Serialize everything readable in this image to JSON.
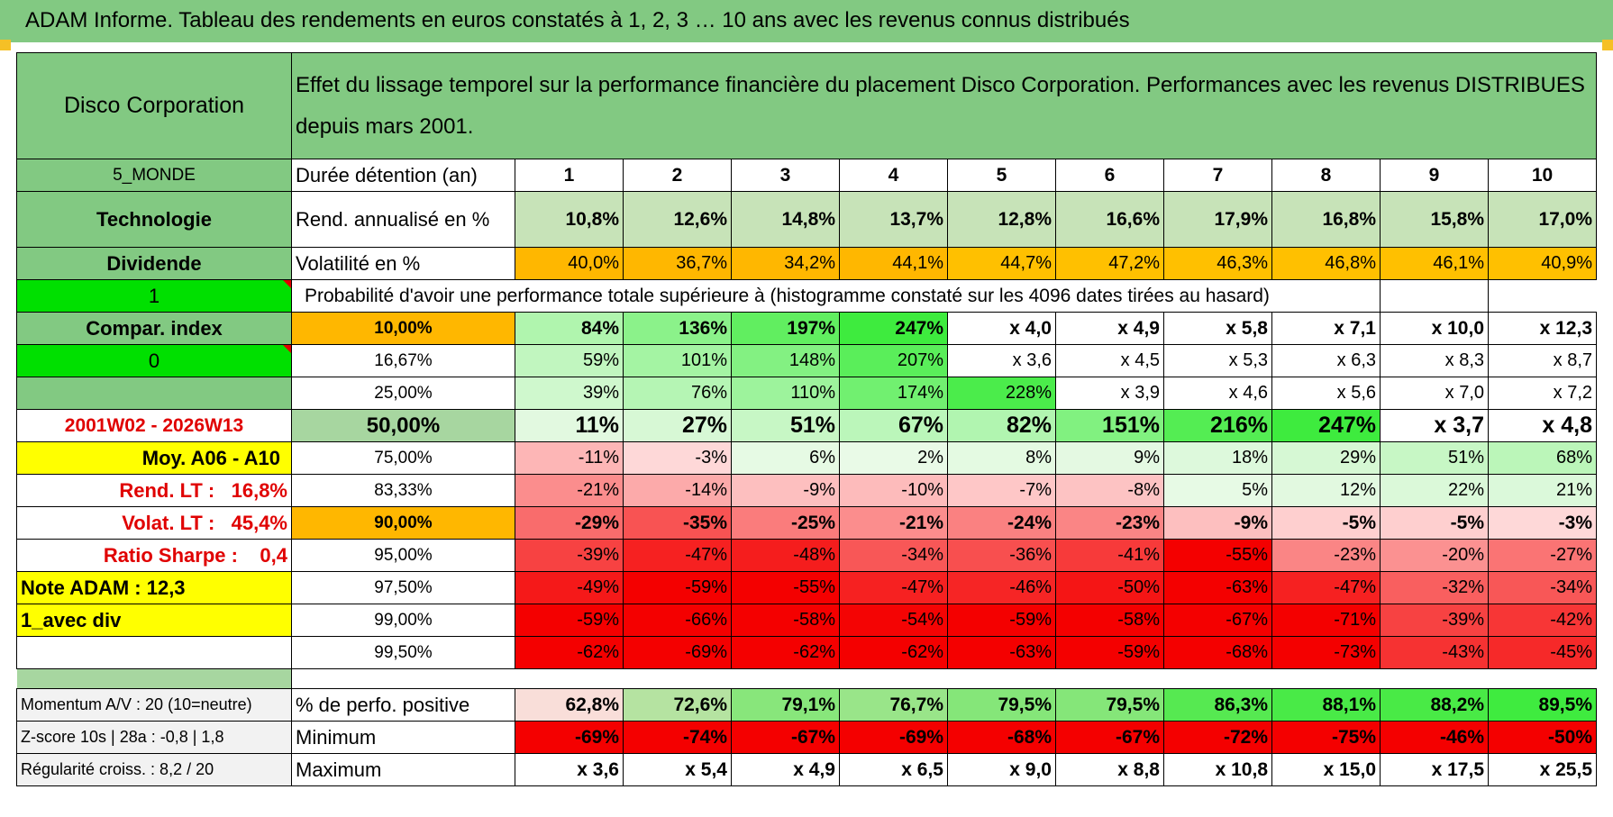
{
  "title": "ADAM Informe. Tableau des rendements en euros constatés à 1, 2, 3 … 10 ans avec les revenus connus distribués",
  "header": {
    "fund_name": "Disco Corporation",
    "description": "Effet du lissage temporel sur la performance financière du placement Disco Corporation. Performances avec les revenus DISTRIBUES depuis mars 2001."
  },
  "info": {
    "zone": "5_MONDE",
    "sector": "Technologie",
    "type": "Dividende",
    "flag1": "1",
    "compar_label": "Compar. index",
    "flag0": "0",
    "period": "2001W02 - 2026W13",
    "moy": "Moy. A06 - A10",
    "rend_lt_label": "Rend. LT :",
    "rend_lt": "16,8%",
    "volat_lt_label": "Volat. LT :",
    "volat_lt": "45,4%",
    "sharpe_label": "Ratio Sharpe :",
    "sharpe": "0,4",
    "note": "Note ADAM : 12,3",
    "avec_div": "1_avec div"
  },
  "row_labels": {
    "duration": "Durée détention (an)",
    "rend": "Rend. annualisé en %",
    "vol": "Volatilité en %",
    "prob": "Probabilité d'avoir une performance totale supérieure à (histogramme constaté sur les 4096 dates tirées au hasard)"
  },
  "years": [
    "1",
    "2",
    "3",
    "4",
    "5",
    "6",
    "7",
    "8",
    "9",
    "10"
  ],
  "rend": [
    "10,8%",
    "12,6%",
    "14,8%",
    "13,7%",
    "12,8%",
    "16,6%",
    "17,9%",
    "16,8%",
    "15,8%",
    "17,0%"
  ],
  "vol": [
    "40,0%",
    "36,7%",
    "34,2%",
    "44,1%",
    "44,7%",
    "47,2%",
    "46,3%",
    "46,8%",
    "46,1%",
    "40,9%"
  ],
  "prob_rows": [
    {
      "pct": "10,00%",
      "cells": [
        "84%",
        "136%",
        "197%",
        "247%",
        "x 4,0",
        "x 4,9",
        "x 5,8",
        "x 7,1",
        "x 10,0",
        "x 12,3"
      ]
    },
    {
      "pct": "16,67%",
      "cells": [
        "59%",
        "101%",
        "148%",
        "207%",
        "x 3,6",
        "x 4,5",
        "x 5,3",
        "x 6,3",
        "x 8,3",
        "x 8,7"
      ]
    },
    {
      "pct": "25,00%",
      "cells": [
        "39%",
        "76%",
        "110%",
        "174%",
        "228%",
        "x 3,9",
        "x 4,6",
        "x 5,6",
        "x 7,0",
        "x 7,2"
      ]
    },
    {
      "pct": "50,00%",
      "cells": [
        "11%",
        "27%",
        "51%",
        "67%",
        "82%",
        "151%",
        "216%",
        "247%",
        "x 3,7",
        "x 4,8"
      ]
    },
    {
      "pct": "75,00%",
      "cells": [
        "-11%",
        "-3%",
        "6%",
        "2%",
        "8%",
        "9%",
        "18%",
        "29%",
        "51%",
        "68%"
      ]
    },
    {
      "pct": "83,33%",
      "cells": [
        "-21%",
        "-14%",
        "-9%",
        "-10%",
        "-7%",
        "-8%",
        "5%",
        "12%",
        "22%",
        "21%"
      ]
    },
    {
      "pct": "90,00%",
      "cells": [
        "-29%",
        "-35%",
        "-25%",
        "-21%",
        "-24%",
        "-23%",
        "-9%",
        "-5%",
        "-5%",
        "-3%"
      ]
    },
    {
      "pct": "95,00%",
      "cells": [
        "-39%",
        "-47%",
        "-48%",
        "-34%",
        "-36%",
        "-41%",
        "-55%",
        "-23%",
        "-20%",
        "-27%"
      ]
    },
    {
      "pct": "97,50%",
      "cells": [
        "-49%",
        "-59%",
        "-55%",
        "-47%",
        "-46%",
        "-50%",
        "-63%",
        "-47%",
        "-32%",
        "-34%"
      ]
    },
    {
      "pct": "99,00%",
      "cells": [
        "-59%",
        "-66%",
        "-58%",
        "-54%",
        "-59%",
        "-58%",
        "-67%",
        "-71%",
        "-39%",
        "-42%"
      ]
    },
    {
      "pct": "99,50%",
      "cells": [
        "-62%",
        "-69%",
        "-62%",
        "-62%",
        "-63%",
        "-59%",
        "-68%",
        "-73%",
        "-43%",
        "-45%"
      ]
    }
  ],
  "bottom": {
    "momentum": "Momentum A/V : 20 (10=neutre)",
    "zscore": "Z-score 10s | 28a : -0,8 | 1,8",
    "regularite": "Régularité croiss. : 8,2 / 20",
    "pos_label": "% de perfo. positive",
    "min_label": "Minimum",
    "max_label": "Maximum",
    "pos": [
      "62,8%",
      "72,6%",
      "79,1%",
      "76,7%",
      "79,5%",
      "79,5%",
      "86,3%",
      "88,1%",
      "88,2%",
      "89,5%"
    ],
    "min": [
      "-69%",
      "-74%",
      "-67%",
      "-69%",
      "-68%",
      "-67%",
      "-72%",
      "-75%",
      "-46%",
      "-50%"
    ],
    "max": [
      "x 3,6",
      "x 5,4",
      "x 4,9",
      "x 6,5",
      "x 9,0",
      "x 8,8",
      "x 10,8",
      "x 15,0",
      "x 17,5",
      "x 25,5"
    ]
  },
  "colors": {
    "header_green": "#82c982",
    "bright_green": "#00e000",
    "yellow": "#ffff00",
    "orange": "#ffb700",
    "red_text": "#e00000"
  }
}
